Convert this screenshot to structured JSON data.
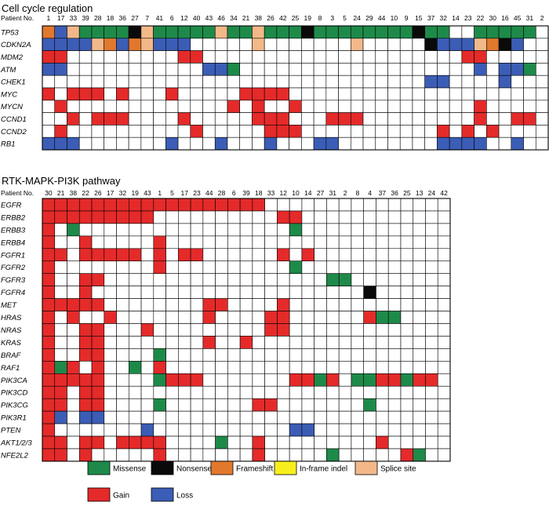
{
  "chart_data": {
    "type": "heatmap",
    "colors": {
      "missense": "#1e8a4a",
      "nonsense": "#0a0a0a",
      "frameshift": "#e1782e",
      "inframe": "#f7ee1d",
      "splice": "#f3b889",
      "gain": "#e52a2a",
      "loss": "#3c5db6",
      "none": "#ffffff"
    },
    "panels": [
      {
        "title": "Cell cycle regulation",
        "column_header_label": "Patient No.",
        "patients": [
          "1",
          "17",
          "33",
          "39",
          "28",
          "18",
          "36",
          "27",
          "7",
          "41",
          "6",
          "12",
          "40",
          "43",
          "46",
          "34",
          "21",
          "38",
          "26",
          "42",
          "25",
          "19",
          "8",
          "3",
          "5",
          "24",
          "29",
          "44",
          "10",
          "9",
          "15",
          "37",
          "32",
          "14",
          "23",
          "22",
          "30",
          "16",
          "45",
          "31",
          "2"
        ],
        "genes": [
          "TP53",
          "CDKN2A",
          "MDM2",
          "ATM",
          "CHEK1",
          "MYC",
          "MYCN",
          "CCND1",
          "CCND2",
          "RB1"
        ],
        "rows": [
          "FLSMMMMNSMMMMMSMMSMMMNMMMMMMMMNMM..MMMMM.",
          "LLLLSFLFSLLL.....S.......S.....NLLLSFNL..",
          "GG.........GG.....................GG.....",
          "LL...........LLM...................L.LLM.",
          "...............................LL....L...",
          "G.GGG.G...G.....GGGG.....................",
          ".G.............G.G..G..............G.....",
          "..G.GGG....G.....GGG...GGG.........G..GG.",
          ".G..........G.....GGG...........G.G.G....",
          "LLL.......L...L...L...LL........LLLL..L.."
        ]
      },
      {
        "title": "RTK-MAPK-PI3K pathway",
        "column_header_label": "Patient No.",
        "patients": [
          "30",
          "21",
          "38",
          "22",
          "26",
          "17",
          "32",
          "19",
          "43",
          "1",
          "5",
          "17",
          "23",
          "44",
          "28",
          "6",
          "39",
          "18",
          "33",
          "12",
          "10",
          "14",
          "27",
          "31",
          "2",
          "8",
          "4",
          "37",
          "36",
          "25",
          "13",
          "24",
          "42"
        ],
        "genes": [
          "EGFR",
          "ERBB2",
          "ERBB3",
          "ERBB4",
          "FGFR1",
          "FGFR2",
          "FGFR3",
          "FGFR4",
          "MET",
          "HRAS",
          "NRAS",
          "KRAS",
          "BRAF",
          "RAF1",
          "PIK3CA",
          "PIK3CD",
          "PIK3CG",
          "PIK3R1",
          "PTEN",
          "AKT1/2/3",
          "NFE2L2"
        ],
        "rows": [
          "GGGGGGGGGGGGGGGGGG...............",
          "GGGGGGGGG..........GG............",
          "G.M.................M............",
          "G..G.....G.......................",
          "GG.GGGGG.G.GG......G.G...........",
          "G........G..........M............",
          "G..GG..................MM........",
          "G..G......................N......",
          "GGGGG........GG....G.............",
          "G.G..G.......G....GG......GMM....",
          "G..GG...G.........GG.............",
          "G..GG........G..G................",
          "G..GG....M.......................",
          "GMG.G..M.G.......................",
          "GGGGG....MGGG.......GGMG.MMGGMGG.",
          "GG.GG............................",
          "GG.GG....M.......GG.......M......",
          "GL.LL............................",
          "G.......L...........LL...........",
          "GG.GG.GGGG....M..G.........G.....",
          "GG.G.....G.......G.....M.....GM.."
        ]
      }
    ],
    "legend": [
      {
        "label": "Missense",
        "key": "missense"
      },
      {
        "label": "Nonsense",
        "key": "nonsense"
      },
      {
        "label": "Frameshift",
        "key": "frameshift"
      },
      {
        "label": "In-frame indel",
        "key": "inframe"
      },
      {
        "label": "Splice site",
        "key": "splice"
      },
      {
        "label": "Gain",
        "key": "gain"
      },
      {
        "label": "Loss",
        "key": "loss"
      }
    ]
  }
}
